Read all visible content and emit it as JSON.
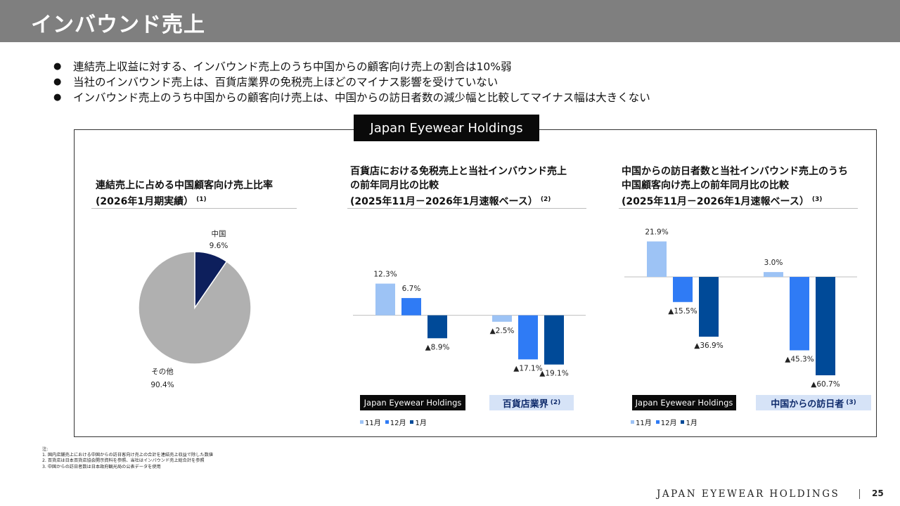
{
  "header": {
    "title": "インバウンド売上"
  },
  "bullets": [
    "連結売上収益に対する、インバウンド売上のうち中国からの顧客向け売上の割合は10%弱",
    "当社のインバウンド売上は、百貨店業界の免税売上ほどのマイナス影響を受けていない",
    "インバウンド売上のうち中国からの顧客向け売上は、中国からの訪日者数の減少幅と比較してマイナス幅は大きくない"
  ],
  "frame_label": "Japan Eyewear Holdings",
  "colors": {
    "nov": "#9dc3f5",
    "dec": "#2f7bf5",
    "jan": "#004a98",
    "pie_china": "#0d1f5c",
    "pie_other": "#b0b0b0"
  },
  "pie_panel": {
    "title_line1": "連結売上に占める中国顧客向け売上比率",
    "title_line2": "(2026年1月期実績）",
    "note_ref": "(1)"
  },
  "dept_panel": {
    "title_line1": "百貨店における免税売上と当社インバウンド売上",
    "title_line2": "の前年同月比の比較",
    "title_line3": "(2025年11月－2026年1月速報ベース）",
    "note_ref": "(2)",
    "tag_company": "Japan Eyewear Holdings",
    "tag_other": "百貨店業界",
    "tag_other_ref": "(2)",
    "legend": [
      "11月",
      "12月",
      "1月"
    ]
  },
  "visitor_panel": {
    "title_line1": "中国からの訪日者数と当社インバウンド売上のうち",
    "title_line2": "中国顧客向け売上の前年同月比の比較",
    "title_line3": "(2025年11月－2026年1月速報ベース）",
    "note_ref": "(3)",
    "tag_company": "Japan Eyewear Holdings",
    "tag_other": "中国からの訪日者",
    "tag_other_ref": "(3)",
    "legend": [
      "11月",
      "12月",
      "1月"
    ]
  },
  "chart_data": [
    {
      "type": "pie",
      "title": "連結売上に占める中国顧客向け売上比率 (2026年1月期実績）",
      "slices": [
        {
          "name": "中国",
          "value": 9.6,
          "label": "9.6%"
        },
        {
          "name": "その他",
          "value": 90.4,
          "label": "90.4%"
        }
      ]
    },
    {
      "type": "bar",
      "title": "百貨店における免税売上と当社インバウンド売上の前年同月比の比較",
      "categories": [
        "Japan Eyewear Holdings",
        "百貨店業界"
      ],
      "series": [
        {
          "name": "11月",
          "values": [
            12.3,
            -2.5
          ],
          "labels": [
            "12.3%",
            "▲2.5%"
          ]
        },
        {
          "name": "12月",
          "values": [
            6.7,
            -17.1
          ],
          "labels": [
            "6.7%",
            "▲17.1%"
          ]
        },
        {
          "name": "1月",
          "values": [
            -8.9,
            -19.1
          ],
          "labels": [
            "▲8.9%",
            "▲19.1%"
          ]
        }
      ],
      "ylim": [
        -20,
        13
      ]
    },
    {
      "type": "bar",
      "title": "中国からの訪日者数と当社インバウンド売上のうち中国顧客向け売上の前年同月比の比較",
      "categories": [
        "Japan Eyewear Holdings",
        "中国からの訪日者"
      ],
      "series": [
        {
          "name": "11月",
          "values": [
            21.9,
            3.0
          ],
          "labels": [
            "21.9%",
            "3.0%"
          ]
        },
        {
          "name": "12月",
          "values": [
            -15.5,
            -45.3
          ],
          "labels": [
            "▲15.5%",
            "▲45.3%"
          ]
        },
        {
          "name": "1月",
          "values": [
            -36.9,
            -60.7
          ],
          "labels": [
            "▲36.9%",
            "▲60.7%"
          ]
        }
      ],
      "ylim": [
        -62,
        23
      ]
    }
  ],
  "notes": [
    "注:",
    "1. 国内店舗売上における中国からの訪日客向け売上の合計を連結売上収益で除した数値",
    "2. 百貨店は日本百貨店協会開示資料を参照、当社はインバウンド売上総合計を参照",
    "3. 中国からの訪日者数は日本政府観光局の公表データを使用"
  ],
  "footer": {
    "brand": "JAPAN EYEWEAR HOLDINGS",
    "page": "25"
  }
}
